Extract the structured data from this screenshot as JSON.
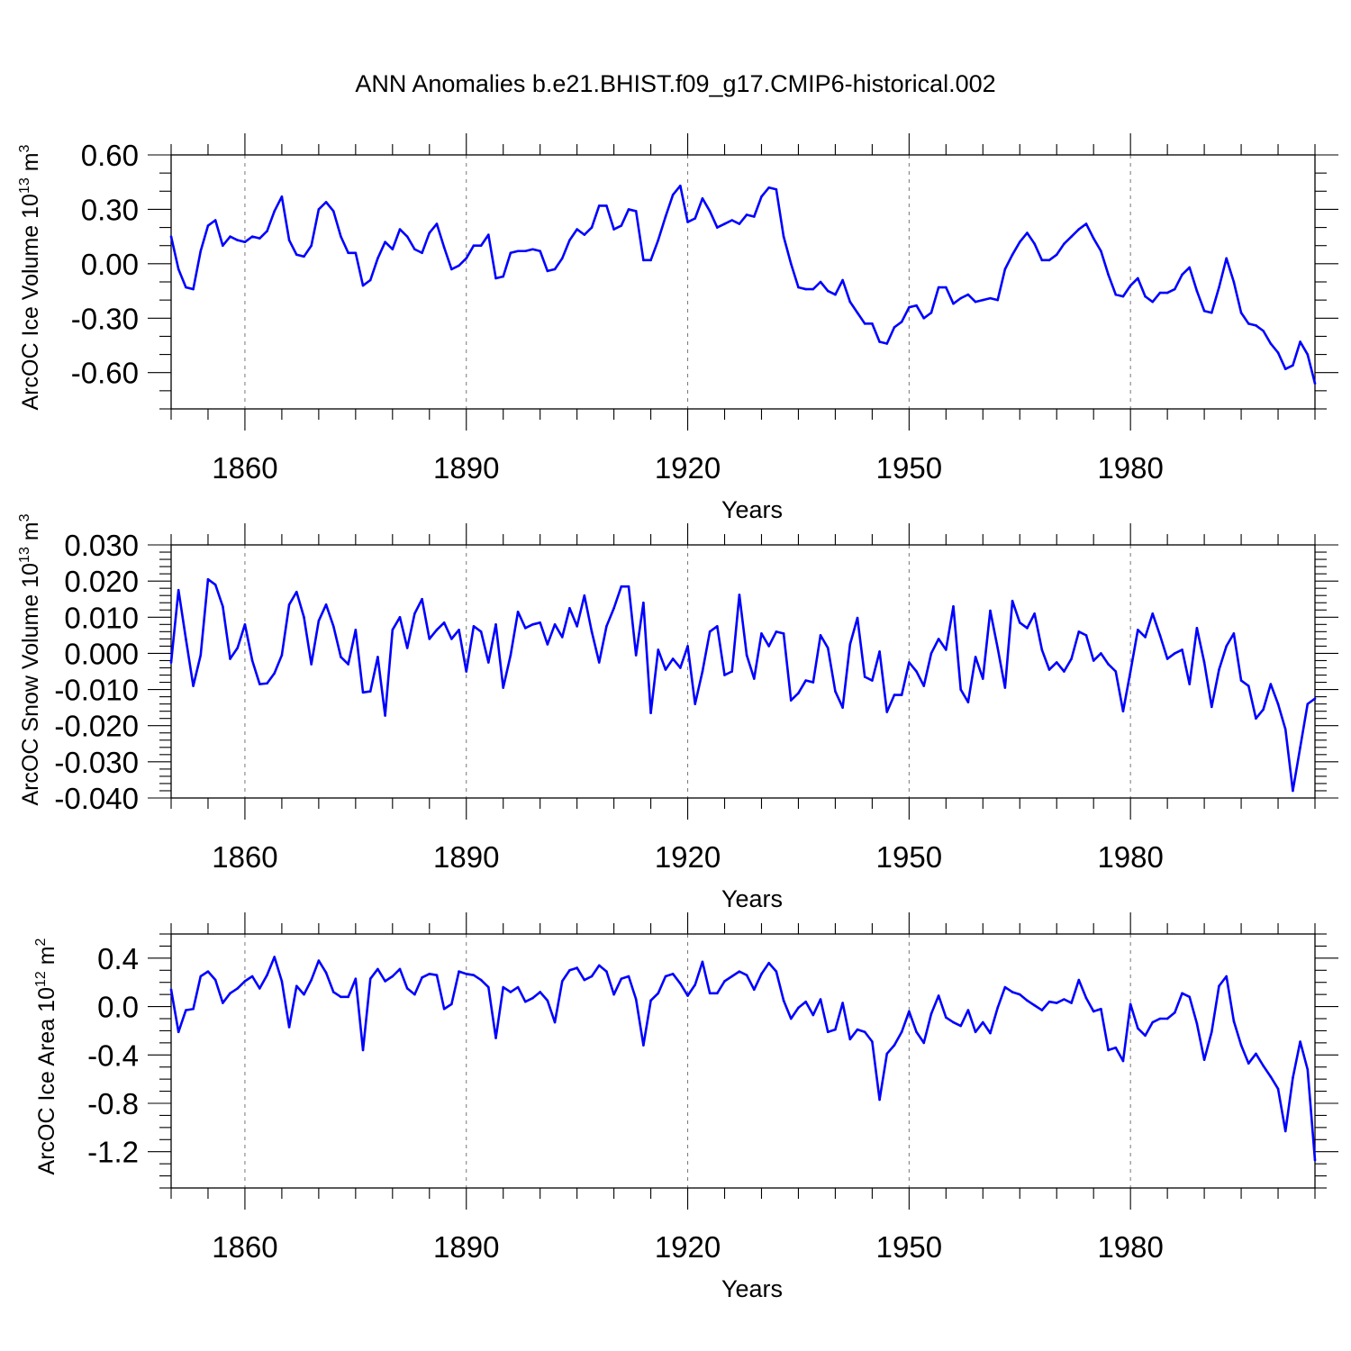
{
  "title": "ANN Anomalies b.e21.BHIST.f09_g17.CMIP6-historical.002",
  "chart_data": [
    {
      "type": "line",
      "title": "ANN Anomalies b.e21.BHIST.f09_g17.CMIP6-historical.002",
      "xlabel": "Years",
      "ylabel": "ArcOC Ice Volume 10",
      "ylabel_exp": "13",
      "ylabel_unit": " m",
      "ylabel_unit_exp": "3",
      "xlim": [
        1850,
        2005
      ],
      "ylim": [
        -0.8,
        0.6
      ],
      "yticks": [
        0.6,
        0.3,
        0.0,
        -0.3,
        -0.6
      ],
      "ytick_labels": [
        "0.60",
        "0.30",
        "0.00",
        "-0.30",
        "-0.60"
      ],
      "yminor_step": 0.1,
      "xticks": [
        1860,
        1890,
        1920,
        1950,
        1980
      ],
      "xtick_labels": [
        "1860",
        "1890",
        "1920",
        "1950",
        "1980"
      ],
      "grid": "vertical dashed at major x ticks",
      "series": [
        {
          "name": "Ice Volume",
          "color": "#0000ff",
          "x_start": 1850,
          "values": [
            0.15,
            -0.03,
            -0.13,
            -0.14,
            0.07,
            0.21,
            0.24,
            0.1,
            0.15,
            0.13,
            0.12,
            0.15,
            0.14,
            0.18,
            0.29,
            0.37,
            0.13,
            0.05,
            0.04,
            0.1,
            0.3,
            0.34,
            0.29,
            0.15,
            0.06,
            0.06,
            -0.12,
            -0.09,
            0.03,
            0.12,
            0.08,
            0.19,
            0.15,
            0.08,
            0.06,
            0.17,
            0.22,
            0.09,
            -0.03,
            -0.01,
            0.03,
            0.1,
            0.1,
            0.16,
            -0.08,
            -0.07,
            0.06,
            0.07,
            0.07,
            0.08,
            0.07,
            -0.04,
            -0.03,
            0.03,
            0.13,
            0.19,
            0.16,
            0.2,
            0.32,
            0.32,
            0.19,
            0.21,
            0.3,
            0.29,
            0.02,
            0.02,
            0.13,
            0.26,
            0.38,
            0.43,
            0.23,
            0.25,
            0.36,
            0.29,
            0.2,
            0.22,
            0.24,
            0.22,
            0.27,
            0.26,
            0.37,
            0.42,
            0.41,
            0.15,
            0.0,
            -0.13,
            -0.14,
            -0.14,
            -0.1,
            -0.15,
            -0.17,
            -0.09,
            -0.21,
            -0.27,
            -0.33,
            -0.33,
            -0.43,
            -0.44,
            -0.35,
            -0.32,
            -0.24,
            -0.23,
            -0.3,
            -0.27,
            -0.13,
            -0.13,
            -0.22,
            -0.19,
            -0.17,
            -0.21,
            -0.2,
            -0.19,
            -0.2,
            -0.03,
            0.05,
            0.12,
            0.17,
            0.11,
            0.02,
            0.02,
            0.05,
            0.11,
            0.15,
            0.19,
            0.22,
            0.14,
            0.07,
            -0.06,
            -0.17,
            -0.18,
            -0.12,
            -0.08,
            -0.18,
            -0.21,
            -0.16,
            -0.16,
            -0.14,
            -0.06,
            -0.02,
            -0.15,
            -0.26,
            -0.27,
            -0.13,
            0.03,
            -0.1,
            -0.27,
            -0.33,
            -0.34,
            -0.37,
            -0.44,
            -0.49,
            -0.58,
            -0.56,
            -0.43,
            -0.5,
            -0.66
          ]
        }
      ]
    },
    {
      "type": "line",
      "xlabel": "Years",
      "ylabel": "ArcOC Snow Volume 10",
      "ylabel_exp": "13",
      "ylabel_unit": " m",
      "ylabel_unit_exp": "3",
      "xlim": [
        1850,
        2005
      ],
      "ylim": [
        -0.04,
        0.03
      ],
      "yticks": [
        0.03,
        0.02,
        0.01,
        0.0,
        -0.01,
        -0.02,
        -0.03,
        -0.04
      ],
      "ytick_labels": [
        "0.030",
        "0.020",
        "0.010",
        "0.000",
        "-0.010",
        "-0.020",
        "-0.030",
        "-0.040"
      ],
      "yminor_step": 0.002,
      "xticks": [
        1860,
        1890,
        1920,
        1950,
        1980
      ],
      "xtick_labels": [
        "1860",
        "1890",
        "1920",
        "1950",
        "1980"
      ],
      "grid": "vertical dashed at major x ticks",
      "series": [
        {
          "name": "Snow Volume",
          "color": "#0000ff",
          "x_start": 1850,
          "values": [
            -0.0025,
            0.0175,
            0.004,
            -0.009,
            -0.0005,
            0.0205,
            0.019,
            0.013,
            -0.0015,
            0.0015,
            0.008,
            -0.002,
            -0.0085,
            -0.0083,
            -0.0055,
            -0.0005,
            0.0135,
            0.017,
            0.01,
            -0.003,
            0.009,
            0.0135,
            0.0075,
            -0.001,
            -0.003,
            0.0065,
            -0.0108,
            -0.0105,
            -0.001,
            -0.0172,
            0.0065,
            0.01,
            0.0015,
            0.011,
            0.015,
            0.004,
            0.0065,
            0.0085,
            0.004,
            0.0065,
            -0.005,
            0.0075,
            0.006,
            -0.0025,
            0.008,
            -0.0095,
            -0.0005,
            0.0115,
            0.007,
            0.008,
            0.0085,
            0.0025,
            0.008,
            0.0045,
            0.0125,
            0.0075,
            0.016,
            0.006,
            -0.0025,
            0.0075,
            0.0125,
            0.0185,
            0.0185,
            -0.0005,
            0.014,
            -0.0165,
            0.001,
            -0.0045,
            -0.0015,
            -0.004,
            0.002,
            -0.014,
            -0.005,
            0.006,
            0.0075,
            -0.006,
            -0.005,
            0.0162,
            -0.0005,
            -0.007,
            0.0055,
            0.002,
            0.006,
            0.0055,
            -0.013,
            -0.011,
            -0.0075,
            -0.008,
            0.005,
            0.0015,
            -0.0105,
            -0.015,
            0.0025,
            0.0098,
            -0.0065,
            -0.0075,
            0.0005,
            -0.0162,
            -0.0115,
            -0.0115,
            -0.0025,
            -0.005,
            -0.009,
            0.0,
            0.004,
            0.001,
            0.013,
            -0.01,
            -0.0135,
            -0.001,
            -0.007,
            0.0118,
            0.0015,
            -0.0095,
            0.0145,
            0.0085,
            0.007,
            0.011,
            0.001,
            -0.0045,
            -0.0025,
            -0.005,
            -0.0015,
            0.006,
            0.005,
            -0.002,
            0.0,
            -0.003,
            -0.005,
            -0.016,
            -0.005,
            0.0065,
            0.0045,
            0.011,
            0.005,
            -0.0015,
            0.0,
            0.001,
            -0.0085,
            0.007,
            -0.0025,
            -0.0148,
            -0.0045,
            0.002,
            0.0055,
            -0.0075,
            -0.009,
            -0.018,
            -0.0155,
            -0.0085,
            -0.014,
            -0.021,
            -0.038,
            -0.026,
            -0.014,
            -0.0125
          ]
        }
      ]
    },
    {
      "type": "line",
      "xlabel": "Years",
      "ylabel": "ArcOC Ice Area 10",
      "ylabel_exp": "12",
      "ylabel_unit": " m",
      "ylabel_unit_exp": "2",
      "xlim": [
        1850,
        2005
      ],
      "ylim": [
        -1.5,
        0.6
      ],
      "yticks": [
        0.4,
        0.0,
        -0.4,
        -0.8,
        -1.2
      ],
      "ytick_labels": [
        "0.4",
        "0.0",
        "-0.4",
        "-0.8",
        "-1.2"
      ],
      "yminor_step": 0.1,
      "xticks": [
        1860,
        1890,
        1920,
        1950,
        1980
      ],
      "xtick_labels": [
        "1860",
        "1890",
        "1920",
        "1950",
        "1980"
      ],
      "grid": "vertical dashed at major x ticks",
      "series": [
        {
          "name": "Ice Area",
          "color": "#0000ff",
          "x_start": 1850,
          "values": [
            0.14,
            -0.21,
            -0.03,
            -0.02,
            0.25,
            0.29,
            0.22,
            0.03,
            0.11,
            0.15,
            0.21,
            0.25,
            0.15,
            0.26,
            0.41,
            0.21,
            -0.17,
            0.17,
            0.1,
            0.22,
            0.38,
            0.28,
            0.12,
            0.08,
            0.08,
            0.23,
            -0.36,
            0.23,
            0.31,
            0.21,
            0.25,
            0.31,
            0.15,
            0.1,
            0.24,
            0.27,
            0.26,
            -0.02,
            0.02,
            0.29,
            0.27,
            0.26,
            0.22,
            0.16,
            -0.26,
            0.16,
            0.12,
            0.16,
            0.04,
            0.07,
            0.12,
            0.05,
            -0.13,
            0.21,
            0.3,
            0.32,
            0.22,
            0.25,
            0.34,
            0.29,
            0.1,
            0.23,
            0.25,
            0.06,
            -0.32,
            0.05,
            0.11,
            0.25,
            0.27,
            0.19,
            0.09,
            0.18,
            0.37,
            0.11,
            0.11,
            0.21,
            0.25,
            0.29,
            0.26,
            0.14,
            0.27,
            0.36,
            0.29,
            0.05,
            -0.1,
            -0.01,
            0.04,
            -0.07,
            0.06,
            -0.21,
            -0.19,
            0.03,
            -0.27,
            -0.19,
            -0.21,
            -0.29,
            -0.77,
            -0.39,
            -0.32,
            -0.21,
            -0.04,
            -0.21,
            -0.3,
            -0.06,
            0.09,
            -0.09,
            -0.13,
            -0.16,
            -0.03,
            -0.21,
            -0.13,
            -0.22,
            -0.01,
            0.16,
            0.12,
            0.1,
            0.05,
            0.01,
            -0.03,
            0.04,
            0.03,
            0.06,
            0.03,
            0.22,
            0.07,
            -0.04,
            -0.02,
            -0.36,
            -0.34,
            -0.45,
            0.02,
            -0.18,
            -0.24,
            -0.13,
            -0.1,
            -0.1,
            -0.05,
            0.11,
            0.08,
            -0.14,
            -0.44,
            -0.21,
            0.17,
            0.25,
            -0.12,
            -0.32,
            -0.47,
            -0.39,
            -0.49,
            -0.58,
            -0.68,
            -1.03,
            -0.59,
            -0.29,
            -0.52,
            -1.27
          ]
        }
      ]
    }
  ]
}
